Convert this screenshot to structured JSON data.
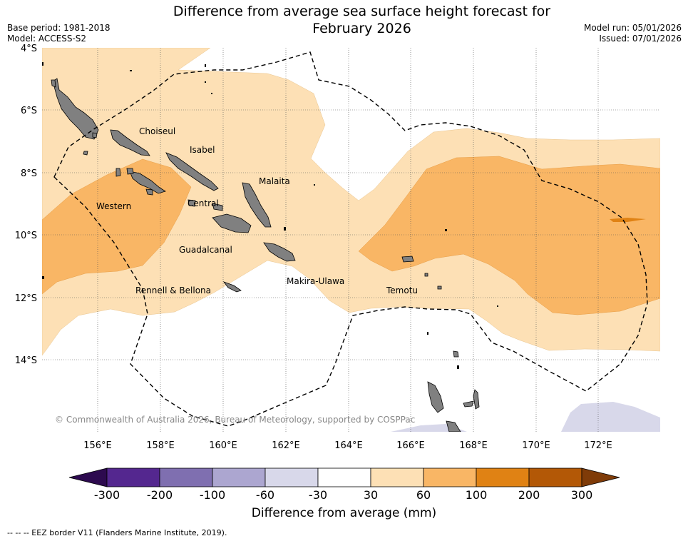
{
  "title_line1": "Difference from average sea surface height forecast for",
  "title_line2": "February 2026",
  "base_period": "Base period: 1981-2018",
  "model": "Model: ACCESS-S2",
  "model_run": "Model run: 05/01/2026",
  "issued": "Issued: 07/01/2026",
  "lat_labels": [
    "4°S",
    "6°S",
    "8°S",
    "10°S",
    "12°S",
    "14°S"
  ],
  "lon_labels": [
    "156°E",
    "158°E",
    "160°E",
    "162°E",
    "164°E",
    "166°E",
    "168°E",
    "170°E",
    "172°E"
  ],
  "provinces": [
    "Choiseul",
    "Isabel",
    "Malaita",
    "Western",
    "Central",
    "Guadalcanal",
    "Makira-Ulawa",
    "Rennell & Bellona",
    "Temotu"
  ],
  "copyright": "© Commonwealth of Australia 2026, Bureau of Meteorology, supported by COSPPac",
  "colorbar": {
    "ticks": [
      "-300",
      "-200",
      "-100",
      "-60",
      "-30",
      "30",
      "60",
      "100",
      "200",
      "300"
    ],
    "colors": [
      "#54278f",
      "#7f6fb0",
      "#aca6d0",
      "#d8d8ea",
      "#ffffff",
      "#fde0b5",
      "#f9b665",
      "#e08214",
      "#b35806"
    ],
    "under_color": "#2d0a4f",
    "over_color": "#7f3b08",
    "label": "Difference from average (mm)"
  },
  "legend_note": "--  --  -- EEZ border V11 (Flanders Marine Institute, 2019)."
}
